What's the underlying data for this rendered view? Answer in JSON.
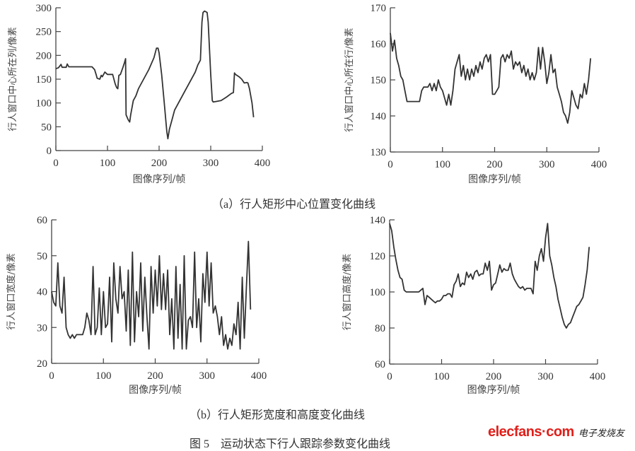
{
  "captions": {
    "a": "（a）行人矩形中心位置变化曲线",
    "b": "（b）行人矩形宽度和高度变化曲线",
    "figure": "图 5　运动状态下行人跟踪参数变化曲线"
  },
  "watermark": {
    "en": "elecfans·com",
    "cn": "电子发烧友"
  },
  "colors": {
    "line": "#333333",
    "axis": "#444444",
    "watermark": "#e0201b"
  },
  "chart_data": [
    {
      "type": "line",
      "xlabel": "图像序列/帧",
      "ylabel": "行人窗口中心所在列/像素",
      "xlim": [
        0,
        400
      ],
      "ylim": [
        0,
        300
      ],
      "xticks": [
        "0",
        "100",
        "200",
        "300",
        "400"
      ],
      "yticks": [
        "0",
        "50",
        "100",
        "150",
        "200",
        "250",
        "300"
      ],
      "grid": false,
      "x": [
        0,
        5,
        10,
        12,
        20,
        22,
        25,
        30,
        40,
        50,
        60,
        65,
        70,
        75,
        78,
        80,
        85,
        88,
        90,
        95,
        100,
        105,
        110,
        115,
        118,
        120,
        122,
        125,
        130,
        133,
        135,
        136,
        140,
        143,
        145,
        150,
        155,
        160,
        170,
        180,
        190,
        195,
        198,
        200,
        205,
        210,
        215,
        217,
        220,
        225,
        230,
        240,
        250,
        260,
        270,
        275,
        280,
        283,
        285,
        288,
        290,
        293,
        295,
        300,
        303,
        305,
        310,
        320,
        330,
        340,
        344,
        346,
        348,
        355,
        360,
        365,
        370,
        372,
        375,
        380,
        383
      ],
      "y": [
        172,
        174,
        181,
        175,
        175,
        182,
        176,
        176,
        176,
        176,
        176,
        176,
        176,
        170,
        160,
        152,
        150,
        158,
        155,
        165,
        160,
        160,
        160,
        140,
        132,
        130,
        158,
        160,
        175,
        185,
        193,
        75,
        65,
        60,
        75,
        105,
        115,
        130,
        150,
        170,
        195,
        215,
        215,
        205,
        160,
        100,
        40,
        25,
        45,
        65,
        85,
        105,
        125,
        145,
        165,
        180,
        190,
        270,
        290,
        293,
        292,
        290,
        270,
        160,
        105,
        102,
        103,
        105,
        112,
        120,
        122,
        163,
        160,
        155,
        150,
        142,
        143,
        142,
        130,
        100,
        70
      ]
    },
    {
      "type": "line",
      "xlabel": "图像序列/帧",
      "ylabel": "行人窗口中心所在行/像素",
      "xlim": [
        0,
        400
      ],
      "ylim": [
        130,
        170
      ],
      "xticks": [
        "0",
        "100",
        "200",
        "300",
        "400"
      ],
      "yticks": [
        "130",
        "140",
        "150",
        "160",
        "170"
      ],
      "grid": false,
      "x": [
        0,
        4,
        8,
        12,
        16,
        20,
        24,
        28,
        32,
        36,
        40,
        44,
        48,
        52,
        56,
        60,
        64,
        68,
        72,
        76,
        80,
        84,
        88,
        92,
        96,
        100,
        104,
        108,
        112,
        116,
        120,
        124,
        128,
        132,
        136,
        140,
        144,
        148,
        152,
        156,
        160,
        164,
        168,
        172,
        176,
        180,
        184,
        188,
        192,
        196,
        200,
        204,
        208,
        212,
        216,
        220,
        224,
        228,
        232,
        236,
        240,
        244,
        248,
        252,
        256,
        260,
        264,
        268,
        272,
        276,
        280,
        284,
        288,
        292,
        296,
        300,
        304,
        308,
        312,
        316,
        320,
        324,
        328,
        332,
        336,
        340,
        344,
        348,
        352,
        356,
        360,
        364,
        368,
        372,
        376,
        380,
        384
      ],
      "y": [
        163,
        158,
        161,
        156,
        154,
        151,
        150,
        147,
        144,
        144,
        144,
        144,
        144,
        144,
        144,
        147,
        148,
        148,
        148,
        149,
        147,
        149,
        147,
        150,
        148,
        147,
        145,
        143,
        146,
        143,
        147,
        153,
        155,
        157,
        151,
        154,
        150,
        153,
        150,
        153,
        151,
        154,
        152,
        155,
        153,
        156,
        157,
        155,
        157,
        146,
        146,
        147,
        148,
        156,
        157,
        155,
        157,
        156,
        158,
        153,
        155,
        154,
        155,
        152,
        154,
        151,
        153,
        150,
        152,
        150,
        152,
        159,
        153,
        159,
        155,
        149,
        152,
        157,
        152,
        153,
        148,
        146,
        144,
        141,
        140,
        138,
        141,
        147,
        145,
        143,
        142,
        146,
        145,
        149,
        146,
        150,
        156
      ]
    },
    {
      "type": "line",
      "xlabel": "图像序列/帧",
      "ylabel": "行人窗口宽度/像素",
      "xlim": [
        0,
        400
      ],
      "ylim": [
        20,
        60
      ],
      "xticks": [
        "0",
        "100",
        "200",
        "300",
        "400"
      ],
      "yticks": [
        "20",
        "30",
        "40",
        "50",
        "60"
      ],
      "grid": false,
      "x": [
        0,
        4,
        8,
        12,
        16,
        20,
        24,
        28,
        32,
        36,
        40,
        44,
        48,
        52,
        56,
        60,
        64,
        68,
        72,
        76,
        80,
        84,
        88,
        92,
        96,
        100,
        104,
        108,
        112,
        116,
        120,
        124,
        128,
        132,
        136,
        140,
        144,
        148,
        152,
        156,
        160,
        164,
        168,
        172,
        176,
        180,
        184,
        188,
        192,
        196,
        200,
        204,
        208,
        212,
        216,
        220,
        224,
        228,
        232,
        236,
        240,
        244,
        248,
        252,
        256,
        260,
        264,
        268,
        272,
        276,
        280,
        284,
        288,
        292,
        296,
        300,
        304,
        308,
        312,
        316,
        320,
        324,
        328,
        332,
        336,
        340,
        344,
        348,
        352,
        356,
        360,
        364,
        368,
        372,
        376,
        380,
        384
      ],
      "y": [
        40,
        37,
        36,
        48,
        36,
        34,
        44,
        30,
        28,
        27,
        28,
        27,
        28,
        28,
        28,
        28,
        30,
        34,
        32,
        28,
        47,
        28,
        30,
        41,
        28,
        40,
        30,
        31,
        44,
        26,
        48,
        38,
        34,
        47,
        38,
        40,
        29,
        46,
        25,
        51,
        26,
        40,
        33,
        48,
        29,
        44,
        33,
        24,
        47,
        34,
        46,
        36,
        50,
        35,
        45,
        35,
        46,
        28,
        38,
        24,
        47,
        27,
        42,
        24,
        50,
        24,
        32,
        33,
        30,
        51,
        30,
        38,
        26,
        45,
        37,
        51,
        36,
        48,
        34,
        36,
        33,
        28,
        33,
        25,
        28,
        24,
        27,
        25,
        31,
        28,
        37,
        24,
        44,
        27,
        41,
        54,
        35
      ]
    },
    {
      "type": "line",
      "xlabel": "图像序列/帧",
      "ylabel": "行人窗口高度/像素",
      "xlim": [
        0,
        400
      ],
      "ylim": [
        60,
        140
      ],
      "xticks": [
        "0",
        "100",
        "200",
        "300",
        "400"
      ],
      "yticks": [
        "60",
        "80",
        "100",
        "120",
        "140"
      ],
      "grid": false,
      "x": [
        0,
        4,
        8,
        12,
        16,
        20,
        24,
        28,
        32,
        36,
        40,
        44,
        48,
        52,
        56,
        60,
        64,
        68,
        72,
        76,
        80,
        84,
        88,
        92,
        96,
        100,
        104,
        108,
        112,
        116,
        120,
        124,
        128,
        132,
        136,
        140,
        144,
        148,
        152,
        156,
        160,
        164,
        168,
        172,
        176,
        180,
        184,
        188,
        192,
        196,
        200,
        204,
        208,
        212,
        216,
        220,
        224,
        228,
        232,
        236,
        240,
        244,
        248,
        252,
        256,
        260,
        264,
        268,
        272,
        276,
        280,
        284,
        288,
        292,
        296,
        300,
        304,
        308,
        312,
        316,
        320,
        324,
        328,
        332,
        336,
        340,
        344,
        348,
        352,
        356,
        360,
        364,
        368,
        372,
        376,
        380,
        384
      ],
      "y": [
        138,
        134,
        125,
        118,
        112,
        108,
        107,
        101,
        100,
        100,
        100,
        100,
        100,
        100,
        100,
        101,
        102,
        93,
        98,
        97,
        96,
        95,
        94,
        95,
        95,
        96,
        98,
        98,
        99,
        99,
        97,
        104,
        106,
        110,
        103,
        105,
        104,
        111,
        108,
        110,
        107,
        111,
        112,
        109,
        110,
        110,
        116,
        112,
        117,
        101,
        104,
        105,
        110,
        115,
        111,
        113,
        112,
        112,
        116,
        110,
        107,
        105,
        103,
        102,
        103,
        101,
        102,
        102,
        102,
        99,
        117,
        112,
        120,
        124,
        117,
        130,
        138,
        120,
        115,
        108,
        103,
        96,
        91,
        86,
        82,
        80,
        82,
        83,
        86,
        89,
        92,
        93,
        95,
        97,
        104,
        112,
        125
      ]
    }
  ]
}
